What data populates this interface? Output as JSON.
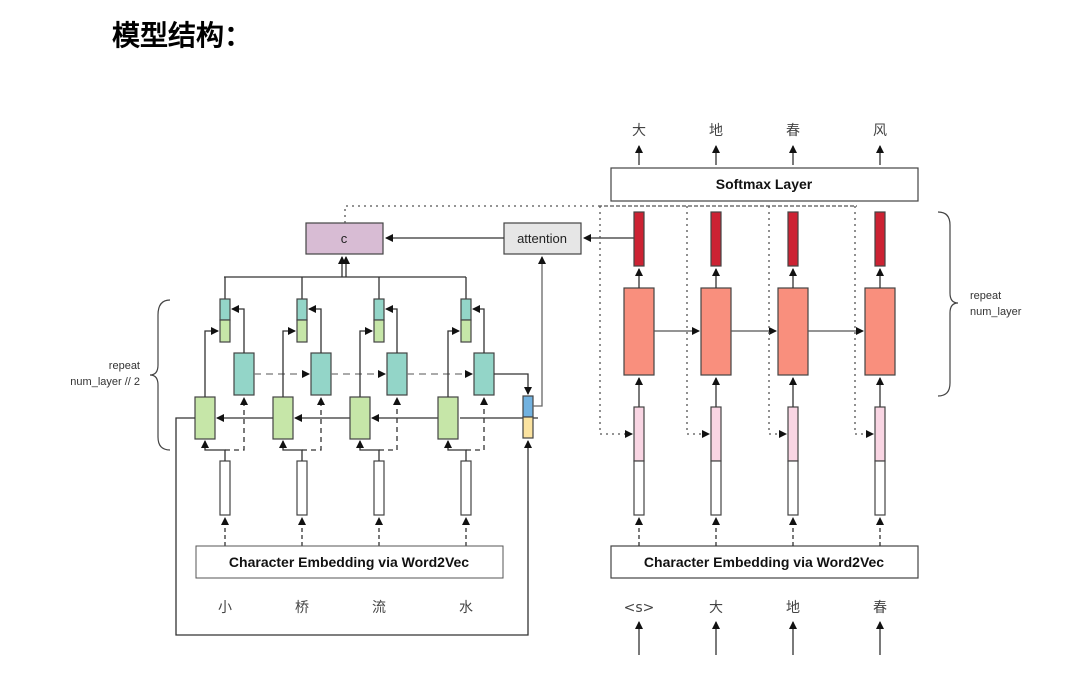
{
  "title": "模型结构：",
  "encoder": {
    "embedding_label": "Character Embedding via Word2Vec",
    "inputs": [
      "小",
      "桥",
      "流",
      "水"
    ],
    "repeat_label_line1": "repeat",
    "repeat_label_line2": "num_layer // 2",
    "context_label": "c",
    "attention_label": "attention"
  },
  "decoder": {
    "embedding_label": "Character Embedding via Word2Vec",
    "inputs": [
      "<s>",
      "大",
      "地",
      "春"
    ],
    "outputs": [
      "大",
      "地",
      "春",
      "风"
    ],
    "softmax_label": "Softmax Layer",
    "repeat_label_line1": "repeat",
    "repeat_label_line2": "num_layer"
  },
  "colors": {
    "context": "#d8bcd4",
    "attention": "#e6e6e6",
    "backward_lstm": "#c6e6a8",
    "forward_lstm": "#93d5c8",
    "decoder_lstm": "#f98f7d",
    "decoder_output": "#cc2233",
    "decoder_input": "#f9d5e3",
    "state_top": "#72b2e0",
    "state_bottom": "#fbe3a0"
  }
}
